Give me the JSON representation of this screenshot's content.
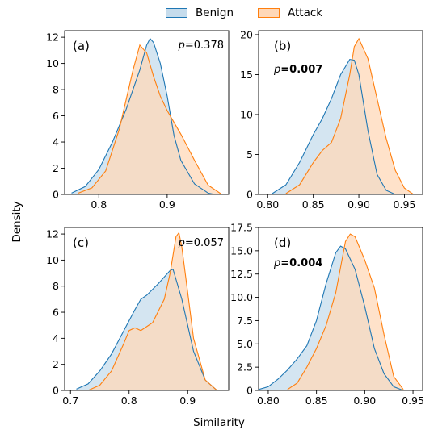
{
  "figure": {
    "xlabel": "Similarity",
    "ylabel": "Density",
    "legend": [
      {
        "name": "Benign",
        "fill": "#c6dcec",
        "stroke": "#1f77b4"
      },
      {
        "name": "Attack",
        "fill": "#ffd8b8",
        "stroke": "#ff7f0e"
      }
    ],
    "overlap_color": "#d4c0ae"
  },
  "chart_data": [
    {
      "type": "area",
      "panel": "(a)",
      "pvalue": {
        "prefix": "p",
        "value": "=0.378",
        "bold": false
      },
      "xlim": [
        0.75,
        0.99
      ],
      "ylim": [
        0,
        12.5
      ],
      "xticks": [
        0.8,
        0.9
      ],
      "xtick_labels": [
        "0.8",
        "0.9"
      ],
      "yticks": [
        0,
        2,
        4,
        6,
        8,
        10,
        12
      ],
      "ytick_labels": [
        "0",
        "2",
        "4",
        "6",
        "8",
        "10",
        "12"
      ],
      "series": [
        {
          "name": "Benign",
          "x": [
            0.76,
            0.78,
            0.8,
            0.82,
            0.84,
            0.86,
            0.87,
            0.875,
            0.88,
            0.89,
            0.9,
            0.91,
            0.92,
            0.94,
            0.96,
            0.97
          ],
          "y": [
            0.1,
            0.6,
            1.9,
            4.0,
            6.5,
            9.5,
            11.4,
            11.9,
            11.6,
            10.0,
            7.5,
            4.5,
            2.6,
            0.8,
            0.1,
            0.0
          ]
        },
        {
          "name": "Attack",
          "x": [
            0.77,
            0.79,
            0.81,
            0.83,
            0.85,
            0.86,
            0.87,
            0.88,
            0.89,
            0.9,
            0.91,
            0.92,
            0.94,
            0.96,
            0.98
          ],
          "y": [
            0.1,
            0.5,
            1.8,
            5.0,
            9.5,
            11.4,
            10.8,
            9.0,
            7.5,
            6.4,
            5.5,
            4.6,
            2.6,
            0.7,
            0.0
          ]
        }
      ]
    },
    {
      "type": "area",
      "panel": "(b)",
      "pvalue": {
        "prefix": "p",
        "value": "=0.007",
        "bold": true
      },
      "xlim": [
        0.79,
        0.97
      ],
      "ylim": [
        0,
        20.5
      ],
      "xticks": [
        0.8,
        0.85,
        0.9,
        0.95
      ],
      "xtick_labels": [
        "0.80",
        "0.85",
        "0.90",
        "0.95"
      ],
      "yticks": [
        0,
        5,
        10,
        15,
        20
      ],
      "ytick_labels": [
        "0",
        "5",
        "10",
        "15",
        "20"
      ],
      "series": [
        {
          "name": "Benign",
          "x": [
            0.805,
            0.82,
            0.835,
            0.85,
            0.86,
            0.87,
            0.88,
            0.89,
            0.895,
            0.9,
            0.91,
            0.92,
            0.93,
            0.94
          ],
          "y": [
            0.1,
            1.2,
            4.0,
            7.5,
            9.5,
            12.0,
            15.0,
            16.9,
            16.8,
            15.0,
            8.0,
            2.5,
            0.5,
            0.0
          ]
        },
        {
          "name": "Attack",
          "x": [
            0.82,
            0.835,
            0.85,
            0.86,
            0.87,
            0.88,
            0.89,
            0.895,
            0.9,
            0.91,
            0.92,
            0.93,
            0.94,
            0.95,
            0.96
          ],
          "y": [
            0.1,
            1.2,
            4.0,
            5.5,
            6.5,
            9.5,
            15.0,
            18.5,
            19.5,
            17.0,
            12.0,
            7.0,
            3.0,
            0.8,
            0.0
          ]
        }
      ]
    },
    {
      "type": "area",
      "panel": "(c)",
      "pvalue": {
        "prefix": "p",
        "value": "=0.057",
        "bold": false
      },
      "xlim": [
        0.69,
        0.97
      ],
      "ylim": [
        0,
        12.5
      ],
      "xticks": [
        0.7,
        0.8,
        0.9
      ],
      "xtick_labels": [
        "0.7",
        "0.8",
        "0.9"
      ],
      "yticks": [
        0,
        2,
        4,
        6,
        8,
        10,
        12
      ],
      "ytick_labels": [
        "0",
        "2",
        "4",
        "6",
        "8",
        "10",
        "12"
      ],
      "series": [
        {
          "name": "Benign",
          "x": [
            0.71,
            0.73,
            0.75,
            0.77,
            0.79,
            0.81,
            0.82,
            0.83,
            0.85,
            0.87,
            0.875,
            0.89,
            0.91,
            0.93,
            0.95
          ],
          "y": [
            0.1,
            0.5,
            1.5,
            2.8,
            4.5,
            6.2,
            7.0,
            7.3,
            8.2,
            9.2,
            9.3,
            7.0,
            3.0,
            0.8,
            0.0
          ]
        },
        {
          "name": "Attack",
          "x": [
            0.73,
            0.75,
            0.77,
            0.79,
            0.8,
            0.81,
            0.82,
            0.84,
            0.86,
            0.87,
            0.88,
            0.885,
            0.89,
            0.9,
            0.91,
            0.93,
            0.95
          ],
          "y": [
            0.0,
            0.4,
            1.5,
            3.5,
            4.6,
            4.8,
            4.6,
            5.2,
            7.0,
            9.0,
            11.8,
            12.1,
            11.0,
            7.5,
            4.0,
            0.8,
            0.0
          ]
        }
      ]
    },
    {
      "type": "area",
      "panel": "(d)",
      "pvalue": {
        "prefix": "p",
        "value": "=0.004",
        "bold": true
      },
      "xlim": [
        0.79,
        0.96
      ],
      "ylim": [
        0,
        17.5
      ],
      "xticks": [
        0.8,
        0.85,
        0.9,
        0.95
      ],
      "xtick_labels": [
        "0.80",
        "0.85",
        "0.90",
        "0.95"
      ],
      "yticks": [
        0,
        2.5,
        5.0,
        7.5,
        10.0,
        12.5,
        15.0,
        17.5
      ],
      "ytick_labels": [
        "0",
        "2.5",
        "5.0",
        "7.5",
        "10.0",
        "12.5",
        "15.0",
        "17.5"
      ],
      "series": [
        {
          "name": "Benign",
          "x": [
            0.79,
            0.8,
            0.81,
            0.82,
            0.83,
            0.84,
            0.85,
            0.86,
            0.87,
            0.875,
            0.88,
            0.89,
            0.9,
            0.91,
            0.92,
            0.93,
            0.94
          ],
          "y": [
            0.1,
            0.4,
            1.2,
            2.2,
            3.4,
            4.8,
            7.5,
            11.5,
            14.8,
            15.5,
            15.2,
            13.0,
            9.0,
            4.5,
            1.8,
            0.4,
            0.0
          ]
        },
        {
          "name": "Attack",
          "x": [
            0.82,
            0.83,
            0.84,
            0.85,
            0.86,
            0.87,
            0.88,
            0.885,
            0.89,
            0.9,
            0.91,
            0.92,
            0.93,
            0.94
          ],
          "y": [
            0.1,
            0.8,
            2.5,
            4.5,
            7.0,
            10.5,
            16.0,
            16.8,
            16.5,
            14.0,
            11.0,
            6.0,
            1.5,
            0.1
          ]
        }
      ]
    }
  ]
}
